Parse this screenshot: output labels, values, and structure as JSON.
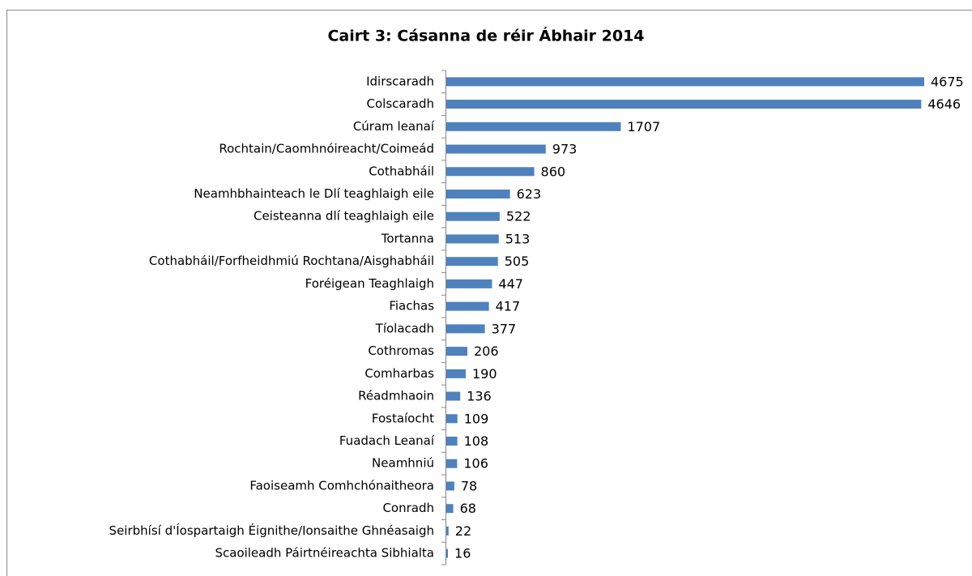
{
  "chart_data": {
    "type": "barh",
    "title": "Cairt 3: Cásanna de réir Ábhair 2014",
    "categories": [
      "Idirscaradh",
      "Colscaradh",
      "Cúram leanaí",
      "Rochtain/Caomhnóireacht/Coimeád",
      "Cothabháil",
      "Neamhbhainteach le Dlí teaghlaigh eile",
      "Ceisteanna dlí teaghlaigh eile",
      "Tortanna",
      "Cothabháil/Forfheidhmiú Rochtana/Aisghabháil",
      "Foréigean Teaghlaigh",
      "Fiachas",
      "Tíolacadh",
      "Cothromas",
      "Comharbas",
      "Réadmhaoin",
      "Fostaíocht",
      "Fuadach Leanaí",
      "Neamhniú",
      "Faoiseamh Comhchónaitheora",
      "Conradh",
      "Seirbhísí d'Íospartaigh Éignithe/Ionsaithe Ghnéasaigh",
      "Scaoileadh Páirtnéireachta Sibhialta"
    ],
    "values": [
      4675,
      4646,
      1707,
      973,
      860,
      623,
      522,
      513,
      505,
      447,
      417,
      377,
      206,
      190,
      136,
      109,
      108,
      106,
      78,
      68,
      22,
      16
    ],
    "color": "#4f81bd"
  }
}
